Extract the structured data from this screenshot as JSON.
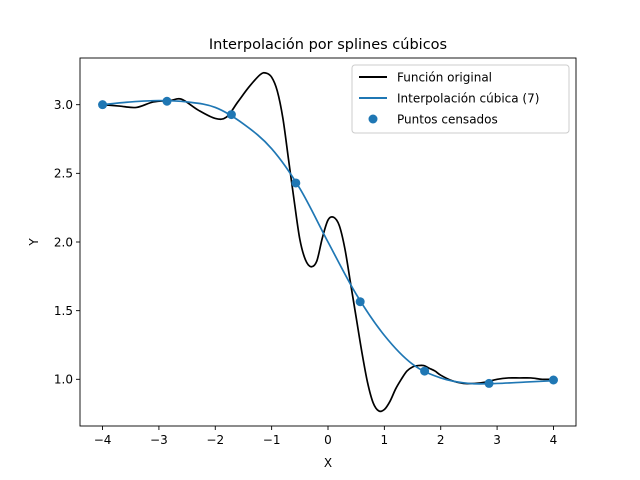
{
  "chart_data": {
    "type": "line",
    "title": "Interpolación por splines cúbicos",
    "xlabel": "X",
    "ylabel": "Y",
    "xlim": [
      -4.4,
      4.4
    ],
    "ylim": [
      0.66,
      3.34
    ],
    "xticks": [
      -4,
      -3,
      -2,
      -1,
      0,
      1,
      2,
      3,
      4
    ],
    "yticks": [
      1.0,
      1.5,
      2.0,
      2.5,
      3.0
    ],
    "xtick_labels": [
      "−4",
      "−3",
      "−2",
      "−1",
      "0",
      "1",
      "2",
      "3",
      "4"
    ],
    "ytick_labels": [
      "1.0",
      "1.5",
      "2.0",
      "2.5",
      "3.0"
    ],
    "grid": false,
    "legend_position": "top-right",
    "colors": {
      "original": "#000000",
      "interpolation": "#1f77b4",
      "points": "#1f77b4"
    },
    "series": [
      {
        "name": "Función original",
        "kind": "line",
        "x": [
          -4.0,
          -3.7,
          -3.4,
          -3.1,
          -2.8,
          -2.6,
          -2.3,
          -2.0,
          -1.8,
          -1.6,
          -1.4,
          -1.2,
          -1.1,
          -1.0,
          -0.9,
          -0.8,
          -0.7,
          -0.6,
          -0.5,
          -0.4,
          -0.3,
          -0.2,
          -0.1,
          0.0,
          0.1,
          0.2,
          0.3,
          0.4,
          0.5,
          0.6,
          0.7,
          0.8,
          0.9,
          1.0,
          1.1,
          1.2,
          1.3,
          1.4,
          1.5,
          1.6,
          1.7,
          1.8,
          1.9,
          2.0,
          2.2,
          2.4,
          2.6,
          2.8,
          3.0,
          3.2,
          3.4,
          3.6,
          3.8,
          4.0
        ],
        "y": [
          3.0,
          2.99,
          2.98,
          3.02,
          3.03,
          3.04,
          2.96,
          2.9,
          2.91,
          3.02,
          3.13,
          3.22,
          3.23,
          3.2,
          3.1,
          2.9,
          2.6,
          2.3,
          2.02,
          1.87,
          1.82,
          1.86,
          2.03,
          2.16,
          2.18,
          2.12,
          1.95,
          1.7,
          1.45,
          1.2,
          0.98,
          0.83,
          0.77,
          0.78,
          0.84,
          0.93,
          1.0,
          1.06,
          1.09,
          1.1,
          1.1,
          1.08,
          1.06,
          1.03,
          0.99,
          0.97,
          0.97,
          0.98,
          1.0,
          1.01,
          1.01,
          1.01,
          1.0,
          1.0
        ]
      },
      {
        "name": "Interpolación cúbica (7)",
        "kind": "line",
        "x": [
          -4.0,
          -3.5,
          -3.0,
          -2.5,
          -2.0,
          -1.5,
          -1.0,
          -0.5,
          0.0,
          0.5,
          1.0,
          1.5,
          2.0,
          2.5,
          3.0,
          3.5,
          4.0
        ],
        "y": [
          3.0,
          3.02,
          3.03,
          3.02,
          2.98,
          2.86,
          2.68,
          2.39,
          2.0,
          1.62,
          1.32,
          1.11,
          1.01,
          0.97,
          0.97,
          0.98,
          0.99
        ]
      },
      {
        "name": "Puntos censados",
        "kind": "scatter",
        "x": [
          -4.0,
          -2.857,
          -1.714,
          -0.571,
          0.571,
          1.714,
          2.857,
          4.0
        ],
        "y": [
          3.0,
          3.025,
          2.928,
          2.43,
          1.565,
          1.06,
          0.97,
          0.995
        ]
      }
    ]
  }
}
